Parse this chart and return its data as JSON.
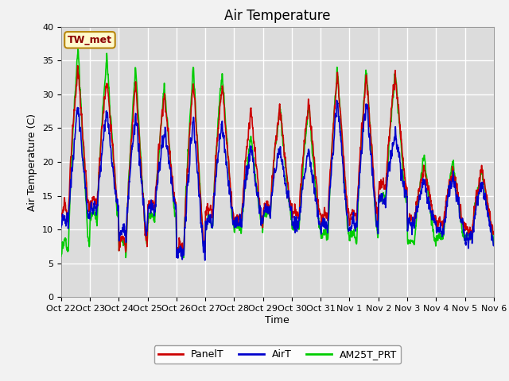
{
  "title": "Air Temperature",
  "xlabel": "Time",
  "ylabel": "Air Temperature (C)",
  "ylim": [
    0,
    40
  ],
  "yticks": [
    0,
    5,
    10,
    15,
    20,
    25,
    30,
    35,
    40
  ],
  "x_labels": [
    "Oct 22",
    "Oct 23",
    "Oct 24",
    "Oct 25",
    "Oct 26",
    "Oct 27",
    "Oct 28",
    "Oct 29",
    "Oct 30",
    "Oct 31",
    "Nov 1",
    "Nov 2",
    "Nov 3",
    "Nov 4",
    "Nov 5",
    "Nov 6"
  ],
  "annotation_text": "TW_met",
  "annotation_color": "#8B0000",
  "annotation_bg": "#FFFACD",
  "annotation_border": "#B8860B",
  "line_colors": {
    "PanelT": "#CC0000",
    "AirT": "#0000CC",
    "AM25T_PRT": "#00CC00"
  },
  "line_widths": {
    "PanelT": 1.2,
    "AirT": 1.2,
    "AM25T_PRT": 1.2
  },
  "plot_bg": "#DCDCDC",
  "grid_color": "#FFFFFF",
  "title_fontsize": 12,
  "axis_label_fontsize": 9,
  "tick_fontsize": 8
}
